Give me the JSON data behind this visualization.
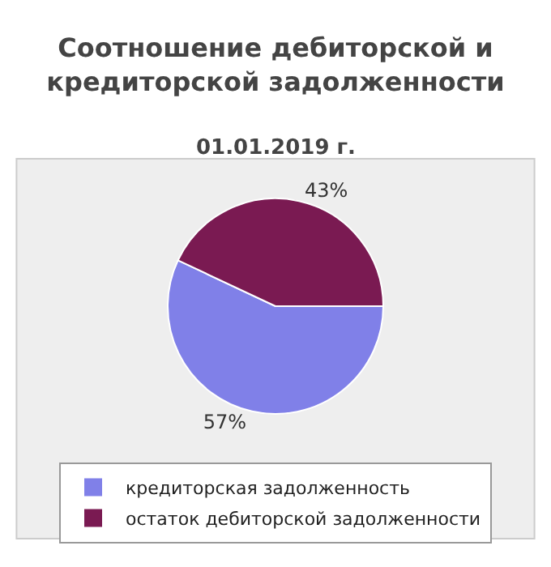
{
  "chart_data": {
    "type": "pie",
    "title": "Соотношение дебиторской и кредиторской задолженности",
    "subtitle": "01.01.2019 г.",
    "categories": [
      "кредиторская задолженность",
      "остаток дебиторской задолженности"
    ],
    "values": [
      57,
      43
    ],
    "value_labels": [
      "57%",
      "43%"
    ],
    "colors": [
      "#8080e8",
      "#7a1a52"
    ],
    "legend": "bottom"
  }
}
